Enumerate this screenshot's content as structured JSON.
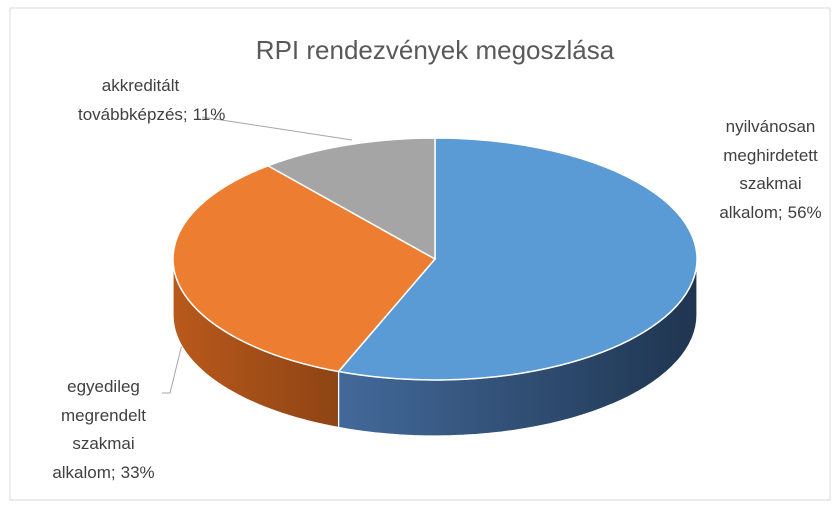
{
  "chart_data": {
    "type": "pie",
    "title": "RPI rendezvények megoszlása",
    "categories": [
      "nyilvánosan meghirdetett szakmai alkalom",
      "egyedileg megrendelt szakmai alkalom",
      "akkreditált továbbképzés"
    ],
    "values": [
      56,
      33,
      11
    ],
    "value_labels": [
      "56%",
      "33%",
      "11%"
    ],
    "label_separator": ";",
    "colors": [
      "#5b9bd5",
      "#ed7d31",
      "#a5a5a5"
    ]
  }
}
